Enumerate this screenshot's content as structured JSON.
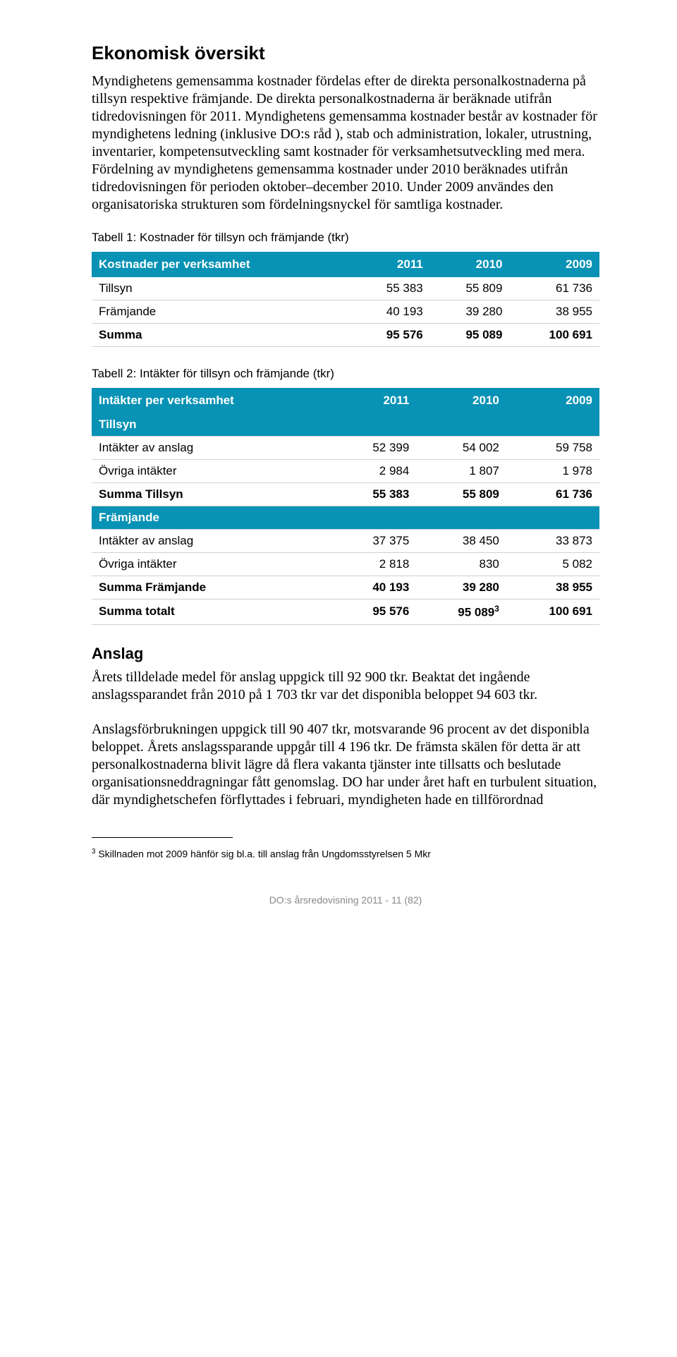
{
  "heading": "Ekonomisk översikt",
  "intro": "Myndighetens gemensamma kostnader fördelas efter de direkta personalkostnaderna på tillsyn respektive främjande. De direkta personalkostnaderna är beräknade utifrån tidredovisningen för 2011. Myndighetens gemensamma kostnader består av kostnader för myndighetens ledning (inklusive DO:s råd ), stab och administration, lokaler, utrustning, inventarier, kompetensutveckling samt kostnader för verksamhetsutveckling med mera. Fördelning av myndighetens gemensamma kostnader under 2010 beräknades utifrån tidredovisningen för perioden oktober–december 2010. Under 2009 användes den organisatoriska strukturen som fördelningsnyckel för samtliga kostnader.",
  "table1": {
    "caption": "Tabell 1: Kostnader för tillsyn och främjande (tkr)",
    "head": [
      "Kostnader per verksamhet",
      "2011",
      "2010",
      "2009"
    ],
    "rows": [
      {
        "label": "Tillsyn",
        "v": [
          "55 383",
          "55 809",
          "61 736"
        ],
        "bold": false
      },
      {
        "label": "Främjande",
        "v": [
          "40 193",
          "39 280",
          "38 955"
        ],
        "bold": false
      },
      {
        "label": "Summa",
        "v": [
          "95 576",
          "95 089",
          "100 691"
        ],
        "bold": true
      }
    ]
  },
  "table2": {
    "caption": "Tabell 2: Intäkter för tillsyn och främjande (tkr)",
    "head": [
      "Intäkter per verksamhet",
      "2011",
      "2010",
      "2009"
    ],
    "rows": [
      {
        "section": "Tillsyn"
      },
      {
        "label": "Intäkter av anslag",
        "v": [
          "52 399",
          "54 002",
          "59 758"
        ],
        "bold": false
      },
      {
        "label": "Övriga intäkter",
        "v": [
          "2 984",
          "1 807",
          "1 978"
        ],
        "bold": false
      },
      {
        "label": "Summa Tillsyn",
        "v": [
          "55 383",
          "55 809",
          "61 736"
        ],
        "bold": true
      },
      {
        "section": "Främjande"
      },
      {
        "label": "Intäkter av anslag",
        "v": [
          "37 375",
          "38 450",
          "33 873"
        ],
        "bold": false
      },
      {
        "label": "Övriga intäkter",
        "v": [
          "2 818",
          "830",
          "5 082"
        ],
        "bold": false
      },
      {
        "label": "Summa Främjande",
        "v": [
          "40 193",
          "39 280",
          "38 955"
        ],
        "bold": true
      },
      {
        "label": "Summa totalt",
        "v": [
          "95 576",
          "95 089",
          "100 691"
        ],
        "bold": true,
        "sup": "3"
      }
    ]
  },
  "anslag_heading": "Anslag",
  "anslag_para1": "Årets tilldelade medel för anslag uppgick till 92 900 tkr. Beaktat det ingående anslagssparandet från 2010 på 1 703 tkr var det disponibla beloppet 94 603 tkr.",
  "anslag_para2": "Anslagsförbrukningen uppgick till 90 407 tkr, motsvarande 96 procent av det disponibla beloppet. Årets anslagssparande uppgår till 4 196 tkr. De främsta skälen för detta är att personalkostnaderna blivit lägre då flera vakanta tjänster inte tillsatts och beslutade organisationsneddragningar fått genomslag. DO har under året haft en turbulent situation, där myndighetschefen förflyttades i februari, myndigheten hade en tillförordnad",
  "footnote_num": "3",
  "footnote_text": " Skillnaden mot 2009 hänför sig bl.a. till anslag från Ungdomsstyrelsen 5 Mkr",
  "footer": "DO:s årsredovisning 2011 - 11 (82)",
  "colors": {
    "header_bg": "#0892b5",
    "header_fg": "#ffffff",
    "row_border": "#d0d0d0",
    "footer_fg": "#888888"
  }
}
